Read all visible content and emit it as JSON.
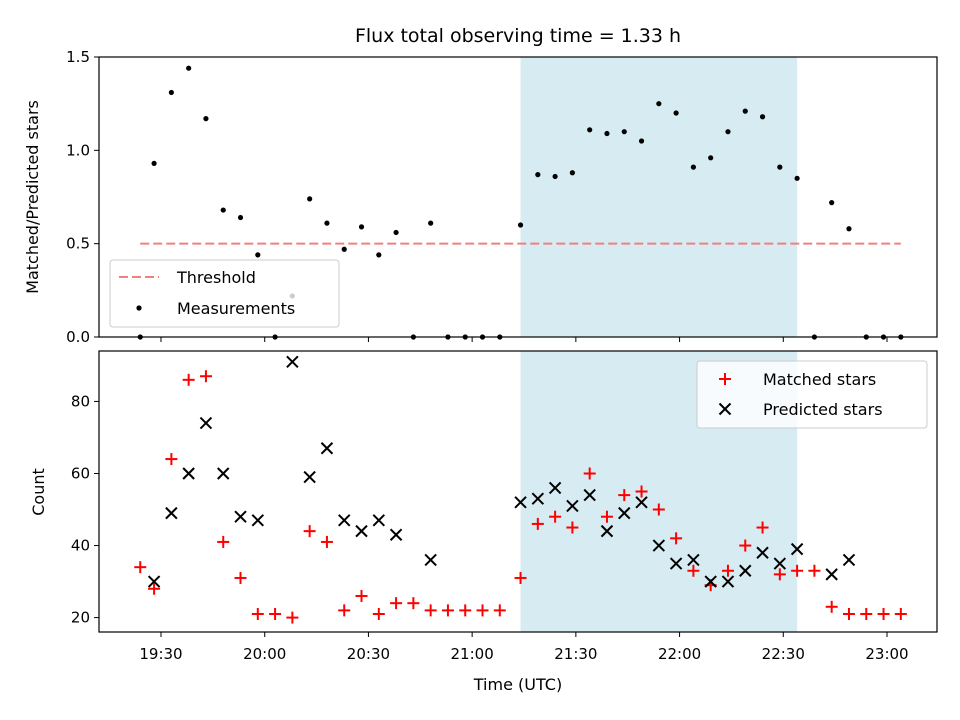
{
  "chart_data": [
    {
      "type": "scatter",
      "title": "Flux total observing time = 1.33 h",
      "xlabel": "",
      "ylabel": "Matched/Predicted stars",
      "ylim": [
        0,
        1.5
      ],
      "yticks": [
        "0.0",
        "0.5",
        "1.0",
        "1.5"
      ],
      "threshold": {
        "name": "Threshold",
        "value": 0.5,
        "color": "#f08080",
        "x_range": [
          "19:24",
          "23:04"
        ]
      },
      "shaded_region": {
        "start": "21:14",
        "end": "22:34",
        "color": "#add8e6"
      },
      "legend_position": "lower-left",
      "series": [
        {
          "name": "Measurements",
          "color": "#000000",
          "x": [
            "19:24",
            "19:28",
            "19:33",
            "19:38",
            "19:43",
            "19:48",
            "19:53",
            "19:58",
            "20:03",
            "20:08",
            "20:13",
            "20:18",
            "20:23",
            "20:28",
            "20:33",
            "20:38",
            "20:43",
            "20:48",
            "20:53",
            "20:58",
            "21:03",
            "21:08",
            "21:14",
            "21:19",
            "21:24",
            "21:29",
            "21:34",
            "21:39",
            "21:44",
            "21:49",
            "21:54",
            "21:59",
            "22:04",
            "22:09",
            "22:14",
            "22:19",
            "22:24",
            "22:29",
            "22:34",
            "22:39",
            "22:44",
            "22:49",
            "22:54",
            "22:59",
            "23:04"
          ],
          "y": [
            0.0,
            0.93,
            1.31,
            1.44,
            1.17,
            0.68,
            0.64,
            0.44,
            0.0,
            0.22,
            0.74,
            0.61,
            0.47,
            0.59,
            0.44,
            0.56,
            0.0,
            0.61,
            0.0,
            0.0,
            0.0,
            0.0,
            0.6,
            0.87,
            0.86,
            0.88,
            1.11,
            1.09,
            1.1,
            1.05,
            1.25,
            1.2,
            0.91,
            0.96,
            1.1,
            1.21,
            1.18,
            0.91,
            0.85,
            0.0,
            0.72,
            0.58,
            0.0,
            0.0,
            0.0
          ]
        }
      ]
    },
    {
      "type": "scatter",
      "title": "",
      "xlabel": "Time (UTC)",
      "ylabel": "Count",
      "xticks": [
        "19:30",
        "20:00",
        "20:30",
        "21:00",
        "21:30",
        "22:00",
        "22:30",
        "23:00"
      ],
      "yticks": [
        "20",
        "40",
        "60",
        "80"
      ],
      "ylim": [
        16,
        94
      ],
      "shaded_region": {
        "start": "21:14",
        "end": "22:34",
        "color": "#add8e6"
      },
      "legend_position": "upper-right",
      "series": [
        {
          "name": "Matched stars",
          "color": "#ff0000",
          "marker": "plus",
          "x": [
            "19:24",
            "19:28",
            "19:33",
            "19:38",
            "19:43",
            "19:48",
            "19:53",
            "19:58",
            "20:03",
            "20:08",
            "20:13",
            "20:18",
            "20:23",
            "20:28",
            "20:33",
            "20:38",
            "20:43",
            "20:48",
            "20:53",
            "20:58",
            "21:03",
            "21:08",
            "21:14",
            "21:19",
            "21:24",
            "21:29",
            "21:34",
            "21:39",
            "21:44",
            "21:49",
            "21:54",
            "21:59",
            "22:04",
            "22:09",
            "22:14",
            "22:19",
            "22:24",
            "22:29",
            "22:34",
            "22:39",
            "22:44",
            "22:49",
            "22:54",
            "22:59",
            "23:04"
          ],
          "y": [
            34,
            28,
            64,
            86,
            87,
            41,
            31,
            21,
            21,
            20,
            44,
            41,
            22,
            26,
            21,
            24,
            24,
            22,
            22,
            22,
            22,
            22,
            31,
            46,
            48,
            45,
            60,
            48,
            54,
            55,
            50,
            42,
            33,
            29,
            33,
            40,
            45,
            32,
            33,
            33,
            23,
            21,
            21,
            21,
            21
          ]
        },
        {
          "name": "Predicted stars",
          "color": "#000000",
          "marker": "x",
          "x": [
            "19:28",
            "19:33",
            "19:38",
            "19:43",
            "19:48",
            "19:53",
            "19:58",
            "20:08",
            "20:13",
            "20:18",
            "20:23",
            "20:28",
            "20:33",
            "20:38",
            "20:48",
            "21:14",
            "21:19",
            "21:24",
            "21:29",
            "21:34",
            "21:39",
            "21:44",
            "21:49",
            "21:54",
            "21:59",
            "22:04",
            "22:09",
            "22:14",
            "22:19",
            "22:24",
            "22:29",
            "22:34",
            "22:44",
            "22:49"
          ],
          "y": [
            30,
            49,
            60,
            74,
            60,
            48,
            47,
            91,
            59,
            67,
            47,
            44,
            47,
            43,
            36,
            52,
            53,
            56,
            51,
            54,
            44,
            49,
            52,
            40,
            35,
            36,
            30,
            30,
            33,
            38,
            35,
            39,
            32,
            36
          ]
        }
      ]
    }
  ]
}
